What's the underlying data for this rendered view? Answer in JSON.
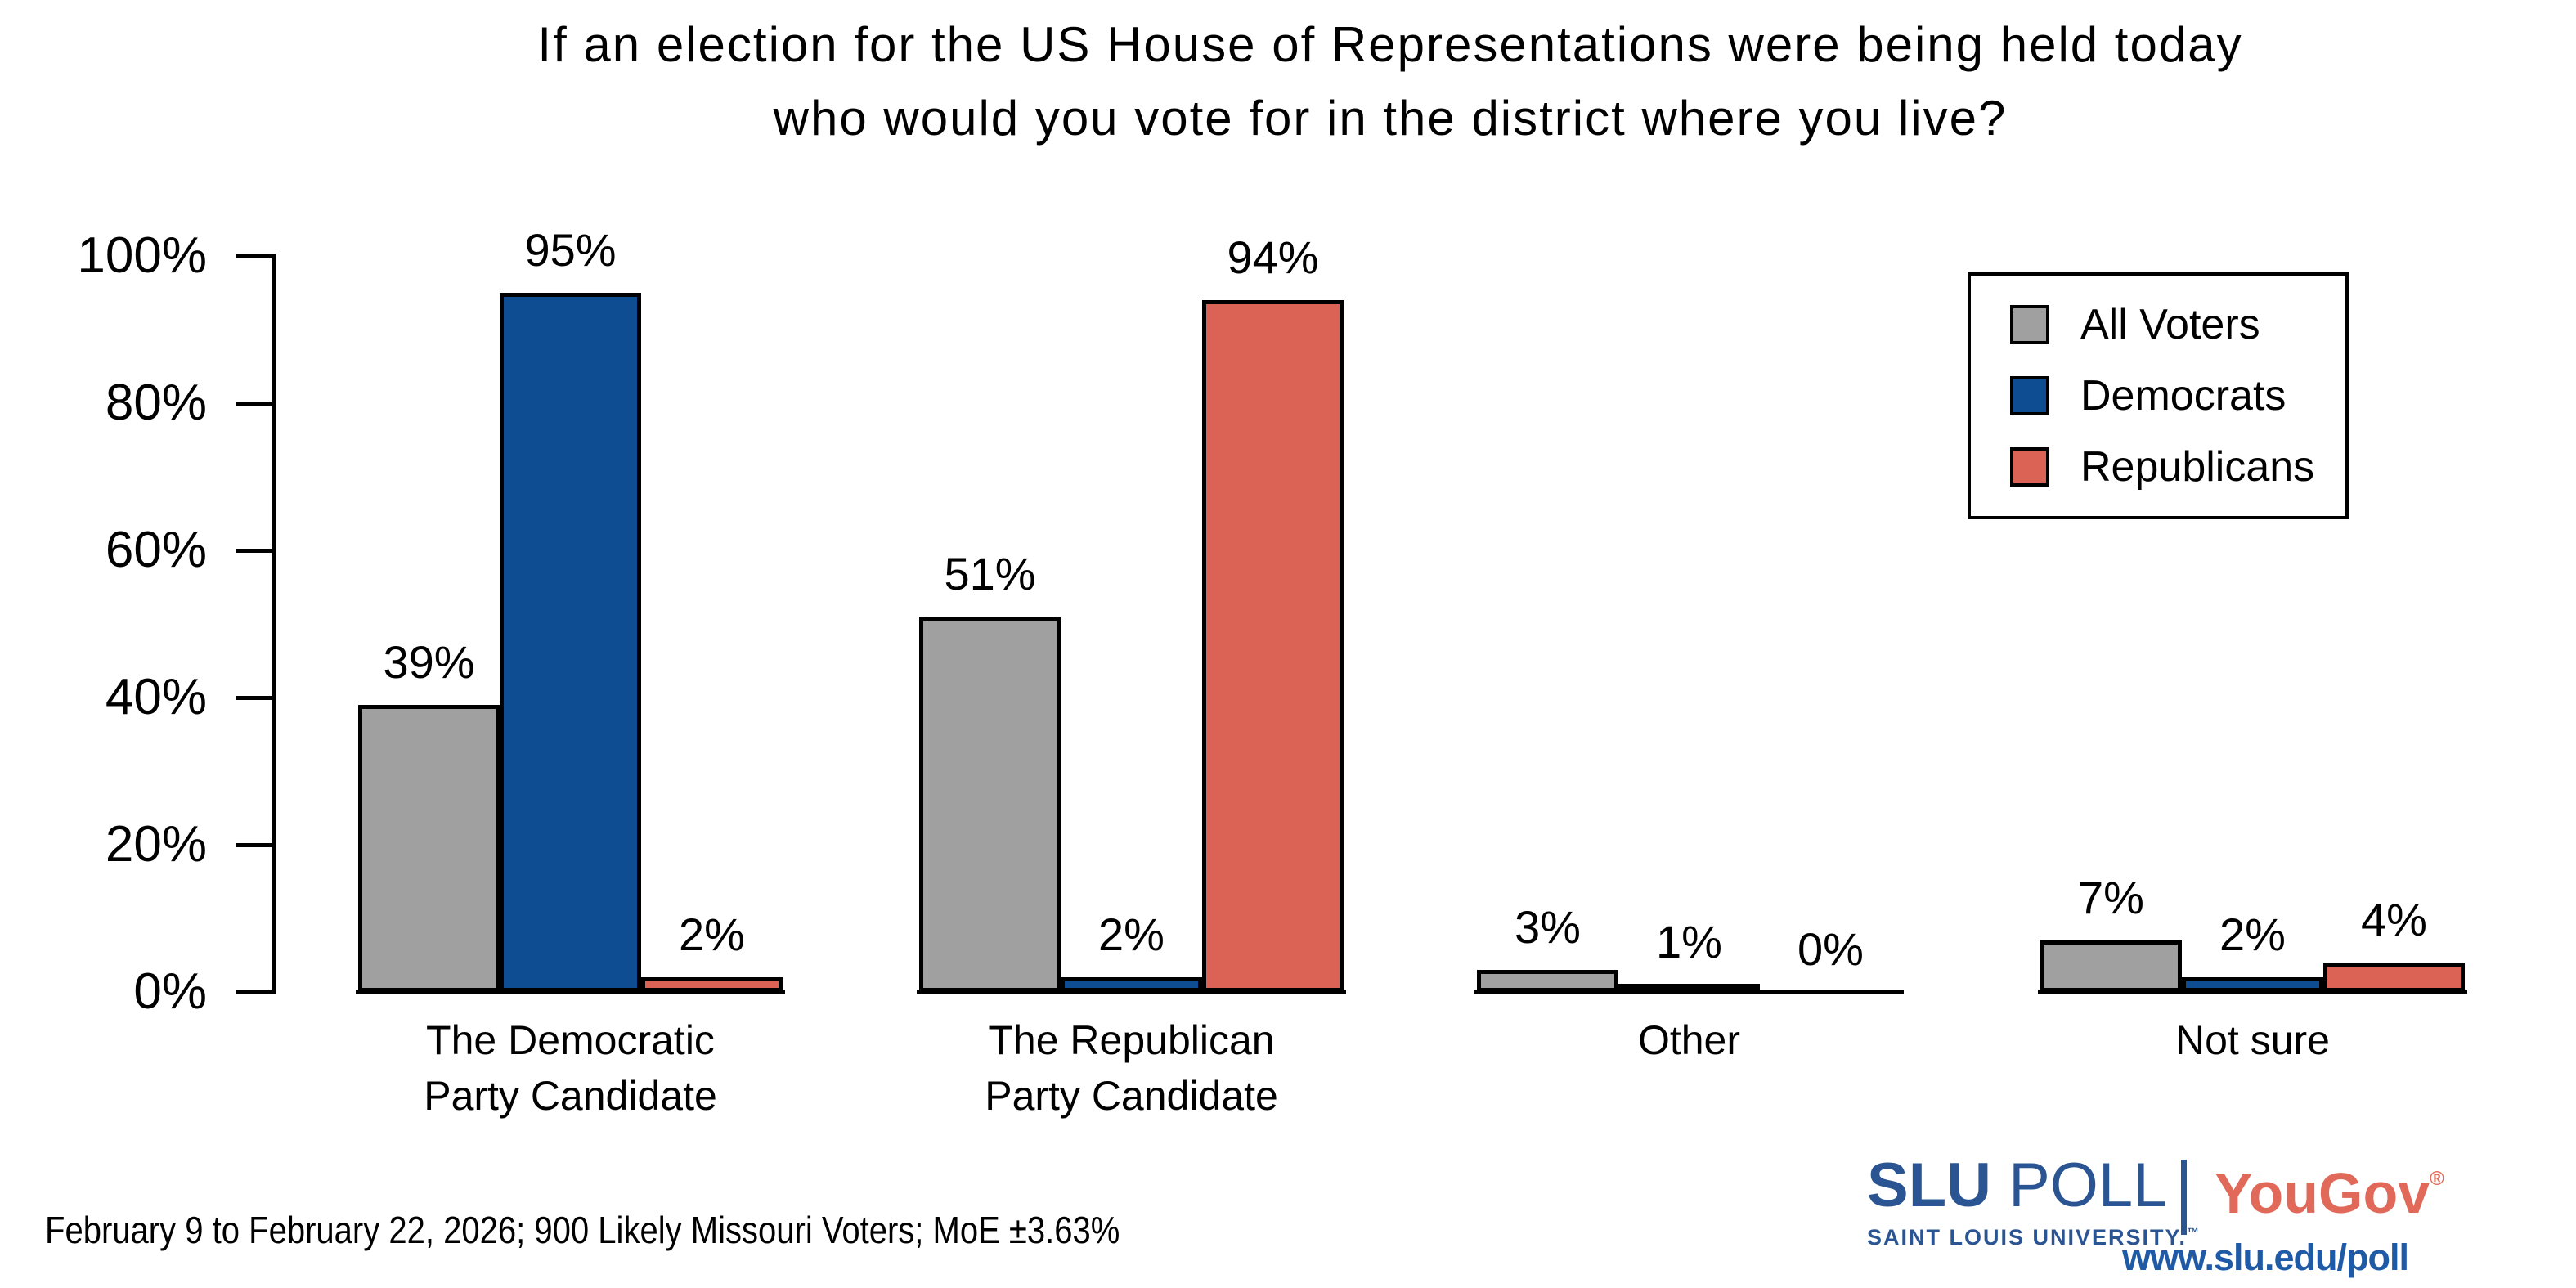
{
  "title": {
    "line1": "If an election for the US House of Representations were being held today",
    "line2": "who would you vote for in the district where you live?"
  },
  "chart_data": {
    "type": "bar",
    "title": "If an election for the US House of Representations were being held today who would you vote for in the district where you live?",
    "categories": [
      "The Democratic Party Candidate",
      "The Republican Party Candidate",
      "Other",
      "Not sure"
    ],
    "category_label_lines": [
      [
        "The Democratic",
        "Party Candidate"
      ],
      [
        "The Republican",
        "Party Candidate"
      ],
      [
        "Other"
      ],
      [
        "Not sure"
      ]
    ],
    "series": [
      {
        "name": "All Voters",
        "color": "#a0a0a0",
        "values": [
          39,
          51,
          3,
          7
        ]
      },
      {
        "name": "Democrats",
        "color": "#0e4d91",
        "values": [
          95,
          2,
          1,
          2
        ]
      },
      {
        "name": "Republicans",
        "color": "#db6356",
        "values": [
          2,
          94,
          0,
          4
        ]
      }
    ],
    "value_suffix": "%",
    "ylim": [
      0,
      100
    ],
    "yticks": [
      {
        "value": 0,
        "label": "0%"
      },
      {
        "value": 20,
        "label": "20%"
      },
      {
        "value": 40,
        "label": "40%"
      },
      {
        "value": 60,
        "label": "60%"
      },
      {
        "value": 80,
        "label": "80%"
      },
      {
        "value": 100,
        "label": "100%"
      }
    ],
    "grid": false,
    "legend_position": "upper right"
  },
  "footer": {
    "note": "February 9 to February 22, 2026; 900 Likely Missouri Voters; MoE ±3.63%"
  },
  "branding": {
    "slu_title_strong": "SLU",
    "slu_title_light": " POLL",
    "slu_subtitle": "SAINT LOUIS UNIVERSITY.",
    "slu_tm": "™",
    "yougov": "YouGov",
    "yougov_reg": "®",
    "url": "www.slu.edu/poll"
  },
  "colors": {
    "bar_gray": "#a0a0a0",
    "bar_blue": "#0e4d91",
    "bar_red": "#db6356",
    "brand_blue": "#2b5592",
    "brand_salmon": "#e0695a",
    "url_blue": "#1f5aa6"
  }
}
